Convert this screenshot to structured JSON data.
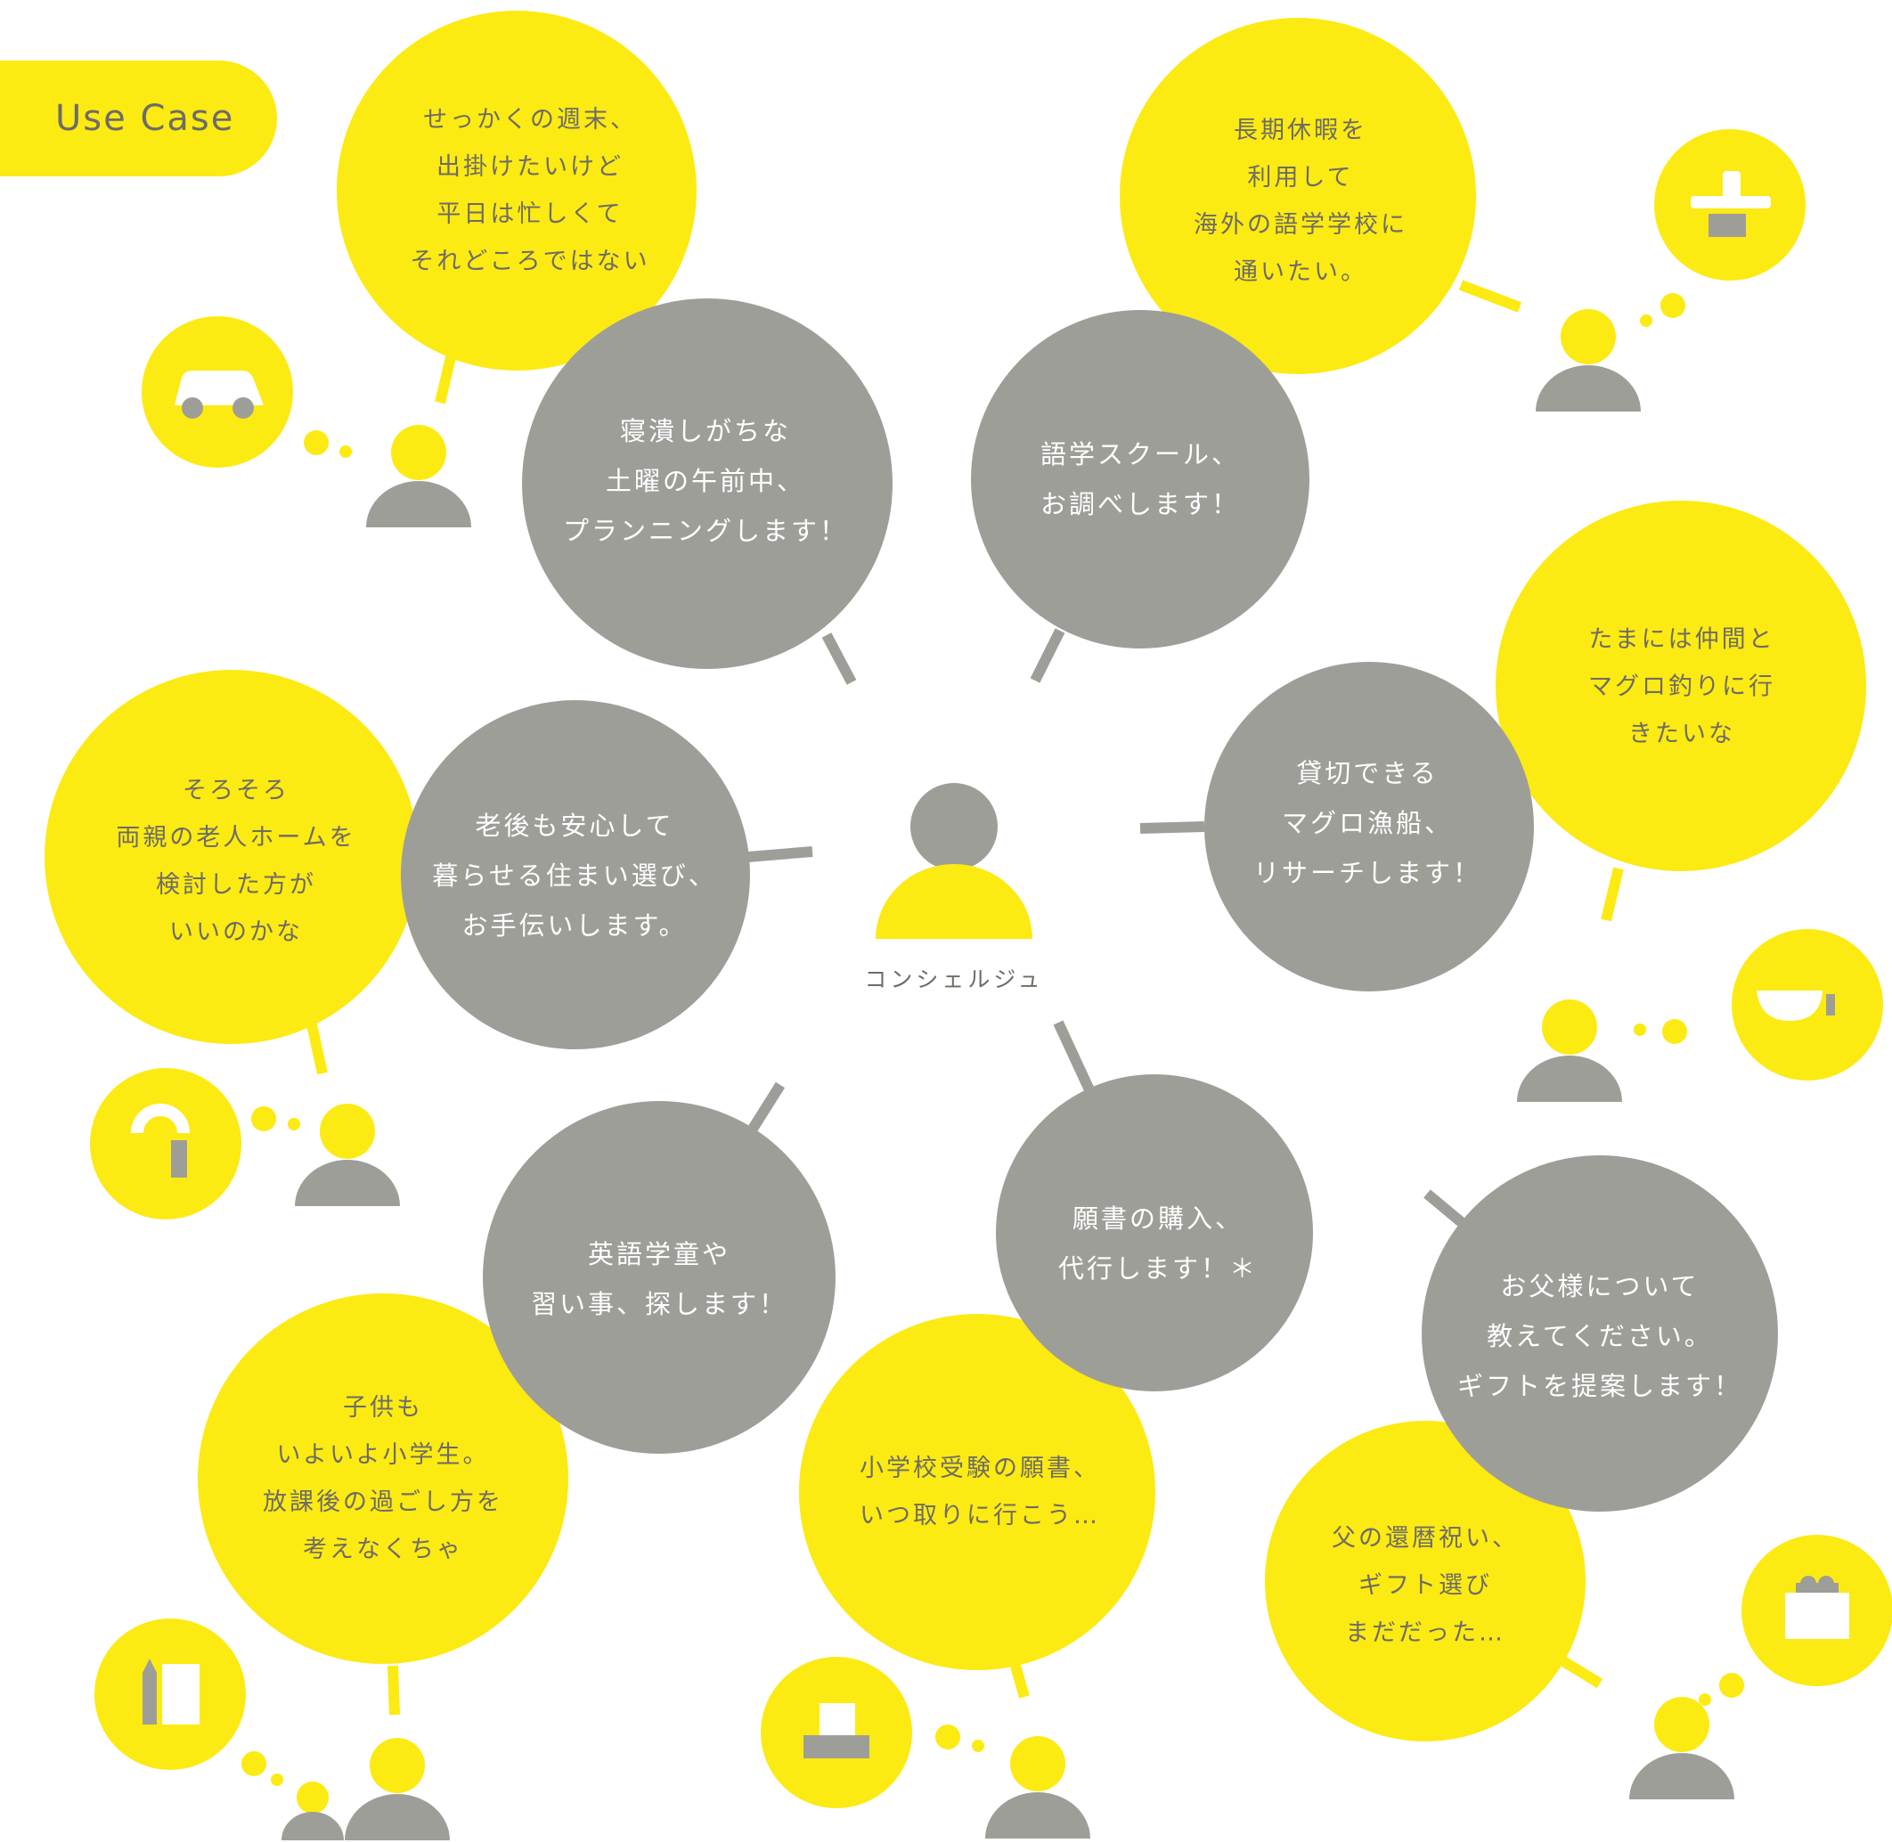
{
  "badge": {
    "label": "Use Case"
  },
  "concierge": {
    "label": "コンシェルジュ"
  },
  "colors": {
    "yellow": "#fcea13",
    "gray": "#9e9e99",
    "text": "#6d6c66",
    "white": "#ffffff"
  },
  "cases": [
    {
      "id": "weekend",
      "need": "せっかくの週末、\n出掛けたいけど\n平日は忙しくて\nそれどころではない",
      "service": "寝潰しがちな\n土曜の午前中、\nプランニングします！",
      "icon": "car-icon"
    },
    {
      "id": "study-abroad",
      "need": "長期休暇を\n利用して\n海外の語学学校に\n通いたい。",
      "service": "語学スクール、\nお調べします！",
      "icon": "airplane-icon"
    },
    {
      "id": "tuna-fishing",
      "need": "たまには仲間と\nマグロ釣りに行きたいな",
      "service": "貸切できる\nマグロ漁船、\nリサーチします！",
      "icon": "boat-icon"
    },
    {
      "id": "nursing-home",
      "need": "そろそろ\n両親の老人ホームを\n検討した方が\nいいのかな",
      "service": "老後も安心して\n暮らせる住まい選び、\nお手伝いします。",
      "icon": "cane-icon"
    },
    {
      "id": "after-school",
      "need": "子供も\nいよいよ小学生。\n放課後の過ごし方を\n考えなくちゃ",
      "service": "英語学童や\n習い事、探します！",
      "icon": "notebook-pencil-icon"
    },
    {
      "id": "exam-application",
      "need": "小学校受験の願書、\nいつ取りに行こう…",
      "service": "願書の購入、\n代行します！＊",
      "icon": "document-tray-icon"
    },
    {
      "id": "gift",
      "need": "父の還暦祝い、\nギフト選び\nまだだった…",
      "service": "お父様について\n教えてください。\nギフトを提案します！",
      "icon": "gift-bag-icon"
    }
  ]
}
